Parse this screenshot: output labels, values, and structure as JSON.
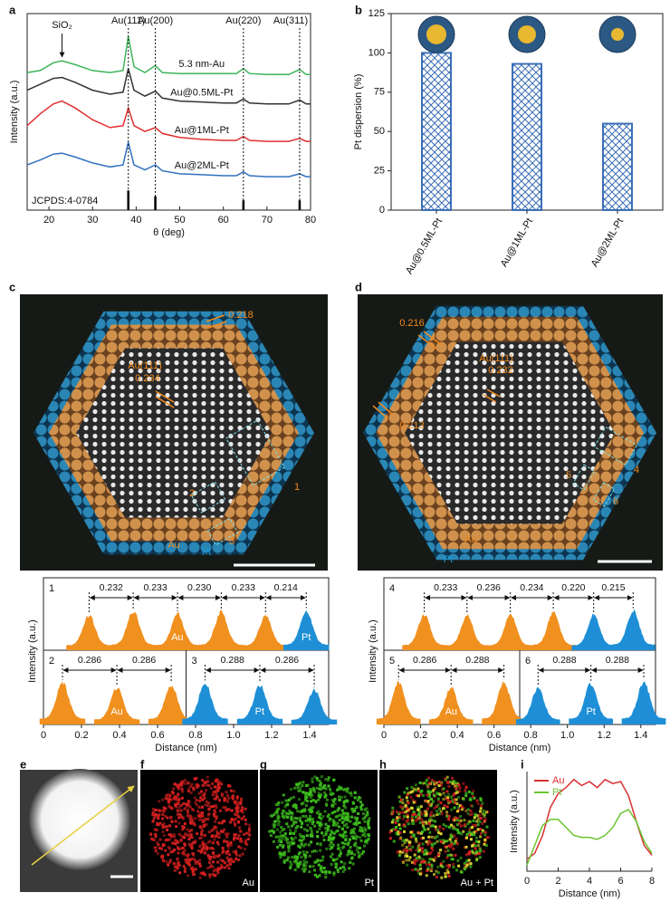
{
  "figure": {
    "panel_labels": [
      "a",
      "b",
      "c",
      "d",
      "e",
      "f",
      "g",
      "h",
      "i"
    ],
    "c_image": {
      "annotations": [
        "0.218",
        "Au(111)",
        "0.234",
        "1",
        "2",
        "3",
        "Au",
        "Pt"
      ]
    },
    "d_image": {
      "annotations": [
        "0.216",
        "Au(111)",
        "0.232",
        "0.213",
        "4",
        "5",
        "6",
        "Au",
        "Pt"
      ]
    },
    "eds_maps": {
      "labels": [
        "Au",
        "Pt",
        "Au + Pt"
      ]
    }
  },
  "chart_data": [
    {
      "type": "line",
      "xlabel": "θ (deg)",
      "ylabel": "Intensity (a.u.)",
      "legend": "inline",
      "xlim": [
        15,
        80
      ],
      "xticks": [
        20,
        30,
        40,
        50,
        60,
        70,
        80
      ],
      "ylim": [
        0,
        10
      ],
      "x": [
        15,
        18,
        21,
        23,
        26,
        30,
        34,
        37,
        38.2,
        39.5,
        42,
        44.4,
        46,
        50,
        55,
        60,
        63,
        64.6,
        66,
        70,
        75,
        77.5,
        79,
        80
      ],
      "series": [
        {
          "name": "5.3 nm-Au",
          "color": "#3cb55a",
          "values": [
            7.0,
            7.1,
            7.5,
            7.6,
            7.4,
            7.1,
            7.0,
            7.1,
            8.85,
            7.3,
            7.0,
            7.35,
            7.0,
            6.95,
            6.95,
            6.95,
            6.95,
            7.2,
            6.95,
            6.9,
            6.9,
            7.15,
            6.9,
            6.9
          ]
        },
        {
          "name": "Au@0.5ML-Pt",
          "color": "#333333",
          "values": [
            6.1,
            6.4,
            6.7,
            6.75,
            6.5,
            6.1,
            5.9,
            6.0,
            7.2,
            6.1,
            5.8,
            6.05,
            5.7,
            5.55,
            5.5,
            5.45,
            5.45,
            5.65,
            5.45,
            5.4,
            5.4,
            5.6,
            5.4,
            5.4
          ]
        },
        {
          "name": "Au@1ML-Pt",
          "color": "#e03030",
          "values": [
            4.3,
            4.9,
            5.4,
            5.55,
            5.2,
            4.6,
            4.2,
            4.3,
            5.2,
            4.3,
            4.0,
            4.2,
            3.9,
            3.7,
            3.6,
            3.55,
            3.55,
            3.75,
            3.55,
            3.5,
            3.5,
            3.65,
            3.5,
            3.5
          ]
        },
        {
          "name": "Au@2ML-Pt",
          "color": "#3070c0",
          "values": [
            2.3,
            2.55,
            2.85,
            2.9,
            2.7,
            2.4,
            2.2,
            2.3,
            3.45,
            2.3,
            2.05,
            2.3,
            2.0,
            1.85,
            1.8,
            1.75,
            1.75,
            1.95,
            1.75,
            1.7,
            1.7,
            1.85,
            1.7,
            1.7
          ]
        }
      ],
      "annotations": [
        {
          "text": "SiO₂",
          "x": 23,
          "style": "arrow"
        },
        {
          "text": "Au(111)",
          "x": 38.2,
          "style": "dotted"
        },
        {
          "text": "Au(200)",
          "x": 44.4,
          "style": "dotted"
        },
        {
          "text": "Au(220)",
          "x": 64.6,
          "style": "dotted"
        },
        {
          "text": "Au(311)",
          "x": 77.5,
          "style": "dotted"
        }
      ],
      "reference": {
        "label": "JCPDS:4-0784",
        "x": [
          38.2,
          44.4,
          64.6,
          77.5
        ],
        "values": [
          1.0,
          0.7,
          0.5,
          0.5
        ]
      }
    },
    {
      "type": "bar",
      "ylabel": "Pt dispersion (%)",
      "categories": [
        "Au@0.5ML-Pt",
        "Au@1ML-Pt",
        "Au@2ML-Pt"
      ],
      "values": [
        100,
        93,
        55
      ],
      "color": "#3b6fb6",
      "ylim": [
        0,
        125
      ],
      "yticks": [
        0,
        25,
        50,
        75,
        100,
        125
      ]
    },
    {
      "type": "profile",
      "xlabel": "Distance (nm)",
      "ylabel": "Intensity (a.u.)",
      "xlim": [
        0,
        1.5
      ],
      "xticks": [
        0,
        0.2,
        0.4,
        0.6,
        0.8,
        {
          "value": 1,
          "label": "1.0"
        },
        1.2,
        1.4
      ],
      "split": 0.75,
      "profiles": [
        {
          "id": "1",
          "distances": [
            0.232,
            0.233,
            0.23,
            0.233,
            0.214
          ],
          "value_labels": [
            "0.232",
            "0.233",
            "0.230",
            "0.233",
            "0.214"
          ],
          "segments": [
            {
              "label": "Au",
              "color": "#f0901e",
              "peaks": [
                0.24,
                0.472,
                0.705,
                0.935,
                1.168
              ]
            },
            {
              "label": "Pt",
              "color": "#1e8fd6",
              "peaks": [
                1.382
              ]
            }
          ]
        },
        {
          "id": "2",
          "distances": [
            0.286,
            0.286
          ],
          "segments": [
            {
              "label": "Au",
              "color": "#f0901e",
              "peaks": [
                0.1,
                0.386,
                0.672
              ]
            }
          ]
        },
        {
          "id": "3",
          "distances": [
            0.288,
            0.286
          ],
          "segments": [
            {
              "label": "Pt",
              "color": "#1e8fd6",
              "peaks": [
                0.85,
                1.138,
                1.424
              ]
            }
          ]
        }
      ]
    },
    {
      "type": "profile",
      "xlabel": "Distance (nm)",
      "ylabel": "Intensity (a.u.)",
      "xlim": [
        0,
        1.48
      ],
      "xticks": [
        0,
        0.2,
        0.4,
        0.6,
        0.8,
        {
          "value": 1,
          "label": "1.0"
        },
        1.2,
        1.4
      ],
      "split": 0.74,
      "profiles": [
        {
          "id": "4",
          "distances": [
            0.233,
            0.236,
            0.234,
            0.22,
            0.215
          ],
          "value_labels": [
            "0.233",
            "0.236",
            "0.234",
            "0.220",
            "0.215"
          ],
          "segments": [
            {
              "label": "Au",
              "color": "#f0901e",
              "peaks": [
                0.22,
                0.453,
                0.689,
                0.923
              ]
            },
            {
              "label": "Pt",
              "color": "#1e8fd6",
              "peaks": [
                1.143,
                1.358
              ]
            }
          ]
        },
        {
          "id": "5",
          "distances": [
            0.286,
            0.288
          ],
          "segments": [
            {
              "label": "Au",
              "color": "#f0901e",
              "peaks": [
                0.08,
                0.366,
                0.654
              ]
            }
          ]
        },
        {
          "id": "6",
          "distances": [
            0.288,
            0.288
          ],
          "segments": [
            {
              "label": "Pt",
              "color": "#1e8fd6",
              "peaks": [
                0.84,
                1.128,
                1.416
              ]
            }
          ]
        }
      ]
    },
    {
      "type": "line",
      "xlabel": "Distance (nm)",
      "ylabel": "Intensity (a.u.)",
      "legend": "upper-left",
      "xlim": [
        0,
        8
      ],
      "xticks": [
        0,
        2,
        4,
        6,
        8
      ],
      "ylim": [
        0,
        5
      ],
      "x": [
        0,
        0.5,
        1,
        1.5,
        2,
        2.5,
        3,
        3.5,
        4,
        4.5,
        5,
        5.5,
        6,
        6.5,
        7,
        7.5,
        8
      ],
      "series": [
        {
          "name": "Au",
          "color": "#d83030",
          "values": [
            0.6,
            0.9,
            1.8,
            3.2,
            3.9,
            4.2,
            4.6,
            4.3,
            4.5,
            4.2,
            4.6,
            4.4,
            4.5,
            3.8,
            2.5,
            1.3,
            0.8
          ]
        },
        {
          "name": "Pt",
          "color": "#6cc530",
          "values": [
            0.3,
            1.3,
            2.3,
            2.6,
            2.6,
            2.2,
            1.8,
            1.7,
            1.7,
            1.6,
            1.8,
            2.2,
            2.9,
            3.1,
            2.5,
            1.5,
            0.9
          ]
        }
      ]
    }
  ]
}
